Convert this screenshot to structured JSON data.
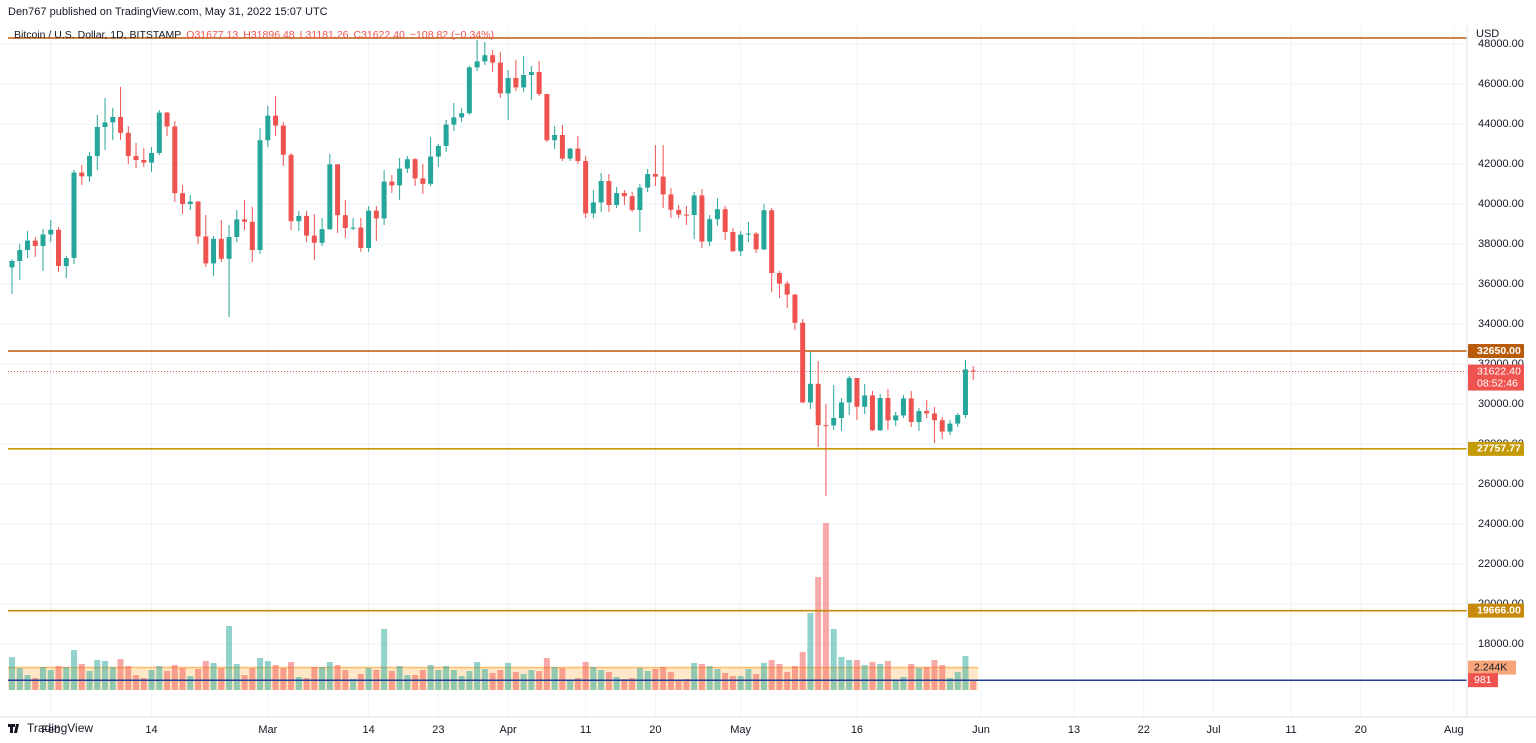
{
  "header": {
    "publisher": "Den767 published on TradingView.com, May 31, 2022 15:07 UTC"
  },
  "footer": {
    "brand": "TradingView"
  },
  "chart_data": {
    "type": "candlestick",
    "title": "Bitcoin / U.S. Dollar, 1D, BITSTAMP",
    "legend_values": [
      "O31677.13",
      "H31896.48",
      "L31181.26",
      "C31622.40",
      "−108.82 (−0.34%)"
    ],
    "currency": "USD",
    "up_color": "#26a69a",
    "down_color": "#ef5350",
    "ohlc": [
      [
        36830,
        37230,
        35500,
        37150
      ],
      [
        37150,
        38000,
        36200,
        37700
      ],
      [
        37700,
        38650,
        37300,
        38170
      ],
      [
        38170,
        38350,
        37350,
        37900
      ],
      [
        37900,
        38750,
        36650,
        38480
      ],
      [
        38480,
        39200,
        38100,
        38710
      ],
      [
        38710,
        38850,
        36600,
        36900
      ],
      [
        36900,
        37400,
        36300,
        37300
      ],
      [
        37300,
        41700,
        37000,
        41570
      ],
      [
        41570,
        41950,
        40950,
        41380
      ],
      [
        41380,
        42600,
        41100,
        42400
      ],
      [
        42400,
        44450,
        41700,
        43850
      ],
      [
        43850,
        45300,
        42700,
        44080
      ],
      [
        44080,
        44800,
        43200,
        44350
      ],
      [
        44350,
        45850,
        43200,
        43560
      ],
      [
        43560,
        43900,
        42000,
        42400
      ],
      [
        42400,
        43050,
        41800,
        42200
      ],
      [
        42200,
        42800,
        41850,
        42070
      ],
      [
        42070,
        42850,
        41600,
        42550
      ],
      [
        42550,
        44700,
        42450,
        44570
      ],
      [
        44570,
        44600,
        43400,
        43880
      ],
      [
        43880,
        44150,
        40100,
        40540
      ],
      [
        40540,
        40950,
        39500,
        40000
      ],
      [
        40000,
        40450,
        39700,
        40120
      ],
      [
        40120,
        40150,
        38000,
        38380
      ],
      [
        38380,
        39450,
        36850,
        37030
      ],
      [
        37030,
        38400,
        36400,
        38260
      ],
      [
        38260,
        39200,
        37100,
        37260
      ],
      [
        37260,
        38950,
        34350,
        38350
      ],
      [
        38350,
        39700,
        38100,
        39230
      ],
      [
        39230,
        40200,
        38700,
        39110
      ],
      [
        39110,
        39850,
        37100,
        37700
      ],
      [
        37700,
        43800,
        37500,
        43190
      ],
      [
        43190,
        44900,
        42850,
        44420
      ],
      [
        44420,
        45400,
        43400,
        43920
      ],
      [
        43920,
        44100,
        41900,
        42460
      ],
      [
        42460,
        42550,
        38700,
        39140
      ],
      [
        39140,
        39650,
        38650,
        39400
      ],
      [
        39400,
        39650,
        38100,
        38420
      ],
      [
        38420,
        39500,
        37200,
        38060
      ],
      [
        38060,
        39300,
        37900,
        38740
      ],
      [
        38740,
        42500,
        38700,
        41980
      ],
      [
        41980,
        42000,
        38550,
        39440
      ],
      [
        39440,
        40200,
        38300,
        38800
      ],
      [
        38800,
        39300,
        38700,
        38820
      ],
      [
        38820,
        39300,
        37600,
        37800
      ],
      [
        37800,
        39900,
        37600,
        39670
      ],
      [
        39670,
        39900,
        38150,
        39280
      ],
      [
        39280,
        41700,
        38950,
        41120
      ],
      [
        41120,
        41450,
        40550,
        40930
      ],
      [
        40930,
        42300,
        40200,
        41770
      ],
      [
        41770,
        42400,
        41550,
        42240
      ],
      [
        42240,
        42300,
        40900,
        41280
      ],
      [
        41280,
        42000,
        40500,
        41010
      ],
      [
        41010,
        43350,
        40900,
        42370
      ],
      [
        42370,
        43000,
        41850,
        42900
      ],
      [
        42900,
        44200,
        42600,
        43970
      ],
      [
        43970,
        45050,
        43650,
        44330
      ],
      [
        44330,
        44800,
        44100,
        44540
      ],
      [
        44540,
        46900,
        44450,
        46830
      ],
      [
        46830,
        48200,
        46650,
        47130
      ],
      [
        47130,
        48100,
        46950,
        47440
      ],
      [
        47440,
        47700,
        46600,
        47070
      ],
      [
        47070,
        47600,
        45300,
        45530
      ],
      [
        45530,
        46700,
        44200,
        46300
      ],
      [
        46300,
        47200,
        45650,
        45830
      ],
      [
        45830,
        47400,
        45600,
        46450
      ],
      [
        46450,
        46900,
        45200,
        46600
      ],
      [
        46600,
        47150,
        45400,
        45500
      ],
      [
        45500,
        45500,
        43100,
        43190
      ],
      [
        43190,
        43900,
        42750,
        43450
      ],
      [
        43450,
        43950,
        42150,
        42270
      ],
      [
        42270,
        42800,
        42150,
        42770
      ],
      [
        42770,
        43400,
        42000,
        42150
      ],
      [
        42150,
        42400,
        39300,
        39530
      ],
      [
        39530,
        40700,
        39300,
        40080
      ],
      [
        40080,
        41550,
        39600,
        41150
      ],
      [
        41150,
        41500,
        39600,
        39950
      ],
      [
        39950,
        40850,
        39800,
        40550
      ],
      [
        40550,
        40700,
        39950,
        40390
      ],
      [
        40390,
        40600,
        39600,
        39700
      ],
      [
        39700,
        41000,
        38600,
        40820
      ],
      [
        40820,
        41750,
        40600,
        41500
      ],
      [
        41500,
        42950,
        40900,
        41370
      ],
      [
        41370,
        42950,
        39800,
        40480
      ],
      [
        40480,
        40800,
        39300,
        39710
      ],
      [
        39710,
        39950,
        39300,
        39470
      ],
      [
        39470,
        39900,
        38950,
        39450
      ],
      [
        39450,
        40600,
        38250,
        40430
      ],
      [
        40430,
        40750,
        37800,
        38120
      ],
      [
        38120,
        39450,
        37900,
        39240
      ],
      [
        39240,
        40300,
        38900,
        39740
      ],
      [
        39740,
        39900,
        38200,
        38600
      ],
      [
        38600,
        38800,
        37600,
        37640
      ],
      [
        37640,
        38650,
        37400,
        38470
      ],
      [
        38470,
        39100,
        38100,
        38520
      ],
      [
        38520,
        38600,
        37550,
        37730
      ],
      [
        37730,
        40000,
        37700,
        39690
      ],
      [
        39690,
        39800,
        35600,
        36550
      ],
      [
        36550,
        36650,
        35300,
        36020
      ],
      [
        36020,
        36150,
        34800,
        35470
      ],
      [
        35470,
        35500,
        33700,
        34060
      ],
      [
        34060,
        34250,
        30050,
        30080
      ],
      [
        30080,
        32600,
        29750,
        31010
      ],
      [
        31010,
        32150,
        27850,
        28940
      ],
      [
        28940,
        30000,
        25400,
        28930
      ],
      [
        28930,
        30950,
        28700,
        29300
      ],
      [
        29300,
        30300,
        28650,
        30080
      ],
      [
        30080,
        31400,
        29450,
        31300
      ],
      [
        31300,
        31300,
        29200,
        29860
      ],
      [
        29860,
        31000,
        29500,
        30430
      ],
      [
        30430,
        30650,
        28650,
        28690
      ],
      [
        28690,
        30500,
        28650,
        30300
      ],
      [
        30300,
        30750,
        28700,
        29180
      ],
      [
        29180,
        29600,
        28900,
        29430
      ],
      [
        29430,
        30450,
        29300,
        30280
      ],
      [
        30280,
        30650,
        28850,
        29100
      ],
      [
        29100,
        29800,
        28650,
        29650
      ],
      [
        29650,
        30200,
        29300,
        29530
      ],
      [
        29530,
        29850,
        28050,
        29190
      ],
      [
        29190,
        29350,
        28250,
        28620
      ],
      [
        28620,
        29200,
        28450,
        29020
      ],
      [
        29020,
        29550,
        28850,
        29450
      ],
      [
        29450,
        32200,
        29300,
        31730
      ],
      [
        31677.13,
        31896.48,
        31181.26,
        31622.4
      ]
    ],
    "volume": [
      3300,
      2200,
      1500,
      1200,
      2300,
      2000,
      2400,
      2300,
      4000,
      2600,
      1900,
      3000,
      2900,
      2300,
      3100,
      2400,
      1500,
      1200,
      2000,
      2400,
      1900,
      2500,
      2200,
      1400,
      2100,
      2900,
      2700,
      2200,
      6400,
      2600,
      1500,
      2200,
      3200,
      2900,
      2500,
      2200,
      2800,
      1300,
      1200,
      2300,
      2300,
      2800,
      2500,
      2000,
      1100,
      1600,
      2200,
      2000,
      6100,
      1900,
      2400,
      1500,
      1500,
      2000,
      2500,
      2000,
      2400,
      2000,
      1400,
      1900,
      2800,
      2100,
      1700,
      2000,
      2700,
      1800,
      1600,
      2000,
      1900,
      3200,
      2300,
      2200,
      1000,
      1200,
      2800,
      2300,
      2000,
      1800,
      1300,
      1100,
      1200,
      2200,
      1900,
      2100,
      2300,
      1800,
      900,
      1100,
      2700,
      2600,
      2400,
      2100,
      1700,
      1400,
      1400,
      2100,
      1600,
      2700,
      3000,
      2600,
      1800,
      2400,
      3800,
      7700,
      11300,
      16700,
      6100,
      3300,
      3000,
      3000,
      2500,
      2800,
      2600,
      2900,
      1000,
      1300,
      2600,
      2200,
      2300,
      3000,
      2500,
      1200,
      1800,
      3400,
      981
    ],
    "volume_ylim": [
      0,
      20000
    ],
    "volume_ma": {
      "value": 2244,
      "label": "2.244K"
    },
    "volume_last": {
      "value": 981,
      "label": "981"
    },
    "xlim": [
      -1.55,
      187.7
    ],
    "xticks": [
      {
        "value": 5,
        "label": "Feb"
      },
      {
        "value": 18,
        "label": "14"
      },
      {
        "value": 33,
        "label": "Mar"
      },
      {
        "value": 46,
        "label": "14"
      },
      {
        "value": 55,
        "label": "23"
      },
      {
        "value": 64,
        "label": "Apr"
      },
      {
        "value": 74,
        "label": "11"
      },
      {
        "value": 83,
        "label": "20"
      },
      {
        "value": 94,
        "label": "May"
      },
      {
        "value": 109,
        "label": "16"
      },
      {
        "value": 125,
        "label": "Jun"
      },
      {
        "value": 137,
        "label": "13"
      },
      {
        "value": 146,
        "label": "22"
      },
      {
        "value": 155,
        "label": "Jul"
      },
      {
        "value": 165,
        "label": "11"
      },
      {
        "value": 174,
        "label": "20"
      },
      {
        "value": 186,
        "label": "Aug"
      }
    ],
    "ylim": [
      14450,
      48700
    ],
    "yticks": [
      {
        "value": 18000,
        "label": "18000.00"
      },
      {
        "value": 20000,
        "label": "20000.00"
      },
      {
        "value": 22000,
        "label": "22000.00"
      },
      {
        "value": 24000,
        "label": "24000.00"
      },
      {
        "value": 26000,
        "label": "26000.00"
      },
      {
        "value": 28000,
        "label": "28000.00"
      },
      {
        "value": 30000,
        "label": "30000.00"
      },
      {
        "value": 32000,
        "label": "32000.00"
      },
      {
        "value": 34000,
        "label": "34000.00"
      },
      {
        "value": 36000,
        "label": "36000.00"
      },
      {
        "value": 38000,
        "label": "38000.00"
      },
      {
        "value": 40000,
        "label": "40000.00"
      },
      {
        "value": 42000,
        "label": "42000.00"
      },
      {
        "value": 44000,
        "label": "44000.00"
      },
      {
        "value": 46000,
        "label": "46000.00"
      },
      {
        "value": 48000,
        "label": "48000.00"
      }
    ],
    "levels": [
      {
        "value": 48300,
        "color": "#b85c0c"
      },
      {
        "value": 32650,
        "label": "32650.00",
        "color": "#b85c0c"
      },
      {
        "value": 27757.77,
        "label": "27757.77",
        "color": "#c49a06"
      },
      {
        "value": 19666,
        "label": "19666.00",
        "color": "#c98a0b"
      }
    ],
    "last_price": {
      "value": 31622.4,
      "label": "31622.40",
      "countdown": "08:52:46",
      "color": "#ef5350"
    },
    "grid": true
  }
}
